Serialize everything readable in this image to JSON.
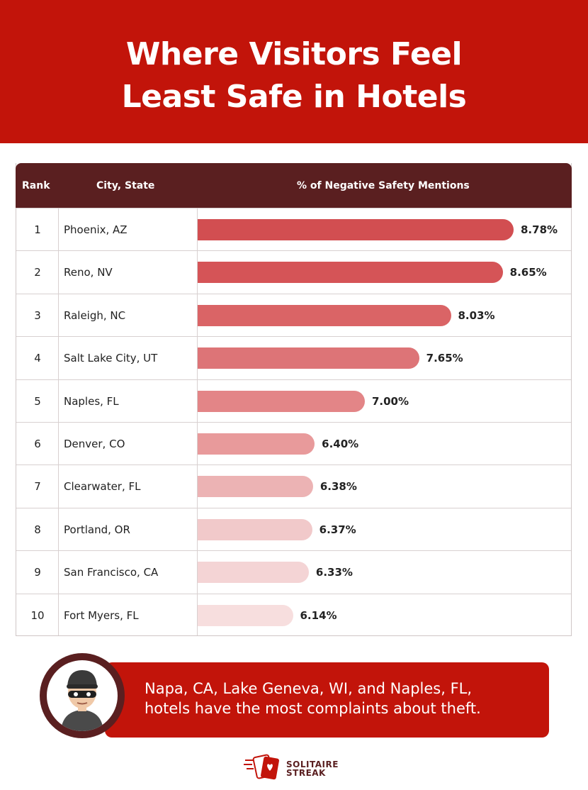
{
  "title": {
    "line1": "Where Visitors Feel",
    "line2": "Least Safe in Hotels"
  },
  "table": {
    "headers": {
      "rank": "Rank",
      "city": "City, State",
      "pct": "% of Negative Safety Mentions"
    }
  },
  "chart_data": {
    "type": "bar",
    "orientation": "horizontal",
    "categories": [
      "Phoenix, AZ",
      "Reno, NV",
      "Raleigh, NC",
      "Salt Lake City, UT",
      "Naples, FL",
      "Denver, CO",
      "Clearwater, FL",
      "Portland, OR",
      "San Francisco, CA",
      "Fort Myers, FL"
    ],
    "ranks": [
      "1",
      "2",
      "3",
      "4",
      "5",
      "6",
      "7",
      "8",
      "9",
      "10"
    ],
    "values": [
      8.78,
      8.65,
      8.03,
      7.65,
      7.0,
      6.4,
      6.38,
      6.37,
      6.33,
      6.14
    ],
    "value_labels": [
      "8.78%",
      "8.65%",
      "8.03%",
      "7.65%",
      "7.00%",
      "6.40%",
      "6.38%",
      "6.37%",
      "6.33%",
      "6.14%"
    ],
    "bar_colors": [
      "#d24e51",
      "#d55457",
      "#da6466",
      "#dd7477",
      "#e38587",
      "#e89a9b",
      "#ecb3b4",
      "#f1c9ca",
      "#f4d4d5",
      "#f7dede"
    ],
    "title": "Where Visitors Feel Least Safe in Hotels",
    "xlabel": "% of Negative Safety Mentions",
    "ylabel": "City, State"
  },
  "callout": {
    "line1": "Napa, CA, Lake Geneva, WI, and Naples, FL,",
    "line2": "hotels have the most complaints about theft.",
    "icon": "burglar-icon"
  },
  "brand": {
    "line1": "SOLITAIRE",
    "line2": "STREAK",
    "icon": "playing-cards-icon"
  },
  "colors": {
    "primary_red": "#c2140a",
    "dark_maroon": "#5a1f20"
  }
}
